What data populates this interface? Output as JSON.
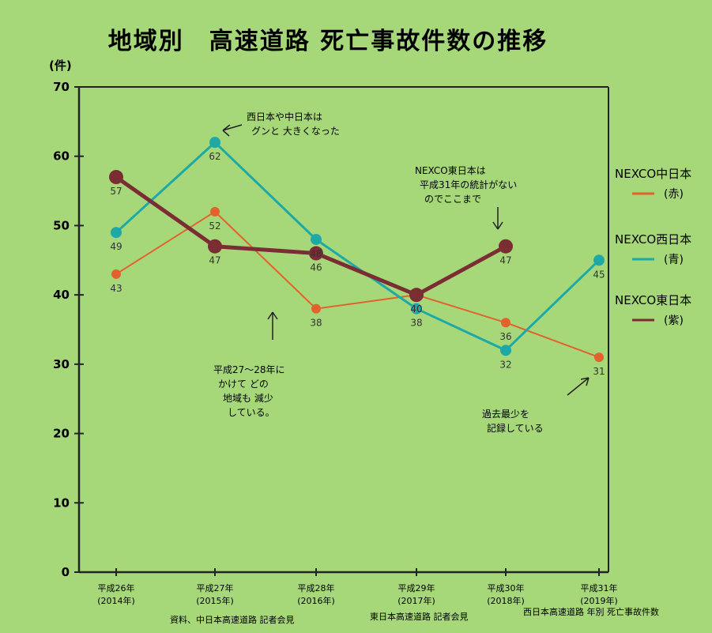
{
  "chart_data": {
    "type": "line",
    "title": "地域別　高速道路 死亡事故件数の推移",
    "ylabel": "(件)",
    "ylim": [
      0,
      70
    ],
    "yticks": [
      "0",
      "10",
      "20",
      "30",
      "40",
      "50",
      "60",
      "70"
    ],
    "categories": [
      "平成26年 (2014年)",
      "平成27年 (2015年)",
      "平成28年 (2016年)",
      "平成29年 (2017年)",
      "平成30年 (2018年)",
      "平成31年 (2019年)"
    ],
    "category_labels": [
      {
        "line1": "平成26年",
        "line2": "(2014年)"
      },
      {
        "line1": "平成27年",
        "line2": "(2015年)"
      },
      {
        "line1": "平成28年",
        "line2": "(2016年)"
      },
      {
        "line1": "平成29年",
        "line2": "(2017年)"
      },
      {
        "line1": "平成30年",
        "line2": "(2018年)"
      },
      {
        "line1": "平成31年",
        "line2": "(2019年)"
      }
    ],
    "series": [
      {
        "name": "NEXCO中日本",
        "legend_sub": "(赤)",
        "color": "#e2622e",
        "values": [
          43,
          52,
          38,
          40,
          36,
          31
        ]
      },
      {
        "name": "NEXCO西日本",
        "legend_sub": "(青)",
        "color": "#1fa9a6",
        "values": [
          49,
          62,
          48,
          38,
          32,
          45
        ]
      },
      {
        "name": "NEXCO東日本",
        "legend_sub": "(紫)",
        "color": "#7b2d34",
        "values": [
          57,
          47,
          46,
          40,
          47,
          null
        ]
      }
    ],
    "data_labels": [
      {
        "text": "57",
        "cat": 0,
        "val": 57
      },
      {
        "text": "49",
        "cat": 0,
        "val": 49
      },
      {
        "text": "43",
        "cat": 0,
        "val": 43
      },
      {
        "text": "62",
        "cat": 1,
        "val": 62
      },
      {
        "text": "52",
        "cat": 1,
        "val": 52
      },
      {
        "text": "47",
        "cat": 1,
        "val": 47
      },
      {
        "text": "48",
        "cat": 2,
        "val": 48
      },
      {
        "text": "46",
        "cat": 2,
        "val": 46
      },
      {
        "text": "38",
        "cat": 2,
        "val": 38
      },
      {
        "text": "40",
        "cat": 3,
        "val": 40
      },
      {
        "text": "38",
        "cat": 3,
        "val": 38
      },
      {
        "text": "47",
        "cat": 4,
        "val": 47
      },
      {
        "text": "36",
        "cat": 4,
        "val": 36
      },
      {
        "text": "32",
        "cat": 4,
        "val": 32
      },
      {
        "text": "45",
        "cat": 5,
        "val": 45
      },
      {
        "text": "31",
        "cat": 5,
        "val": 31
      }
    ],
    "annotations": [
      {
        "lines": [
          "西日本や中日本は",
          "グンと 大きくなった"
        ]
      },
      {
        "lines": [
          "NEXCO東日本は",
          "平成31年の統計がない",
          "のでここまで"
        ]
      },
      {
        "lines": [
          "平成27〜28年に",
          "かけて どの",
          "地域も 減少",
          "している。"
        ]
      },
      {
        "lines": [
          "過去最少を",
          "記録している"
        ]
      }
    ],
    "source": [
      "資料、中日本高速道路 記者会見",
      "東日本高速道路 記者会見",
      "西日本高速道路 年別 死亡事故件数"
    ],
    "grid": false,
    "legend_position": "right"
  }
}
